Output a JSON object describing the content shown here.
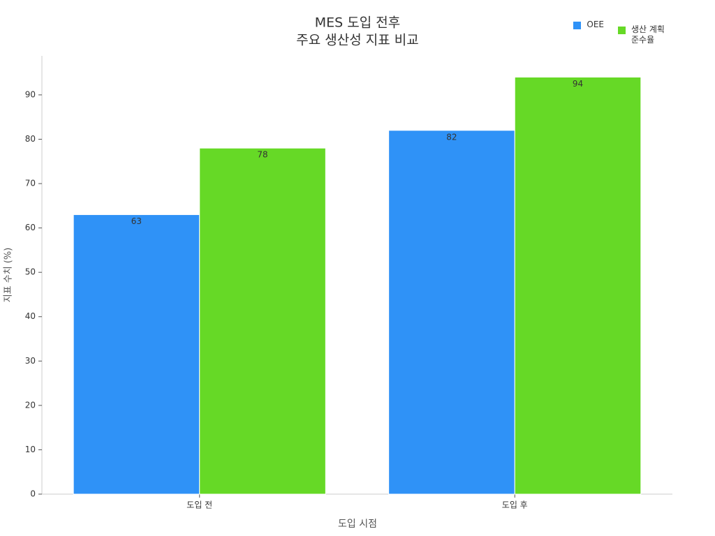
{
  "chart_data": {
    "type": "grouped_bar",
    "title": [
      "MES 도입 전후",
      "주요 생산성 지표 비교"
    ],
    "x_label": "도입 시점",
    "y_label": "지표 수치 (%)",
    "categories": [
      "도입 전",
      "도입 후"
    ],
    "series": [
      {
        "name": "OEE",
        "color": "#2f92f7",
        "values": [
          63,
          82
        ]
      },
      {
        "name": "생산 계획 준수율",
        "color": "#66d926",
        "values": [
          78,
          94
        ]
      }
    ],
    "ylim": [
      0,
      98.8
    ],
    "yticks": [
      0,
      10,
      20,
      30,
      40,
      50,
      60,
      70,
      80,
      90
    ],
    "grid": false,
    "legend": "upper right"
  }
}
